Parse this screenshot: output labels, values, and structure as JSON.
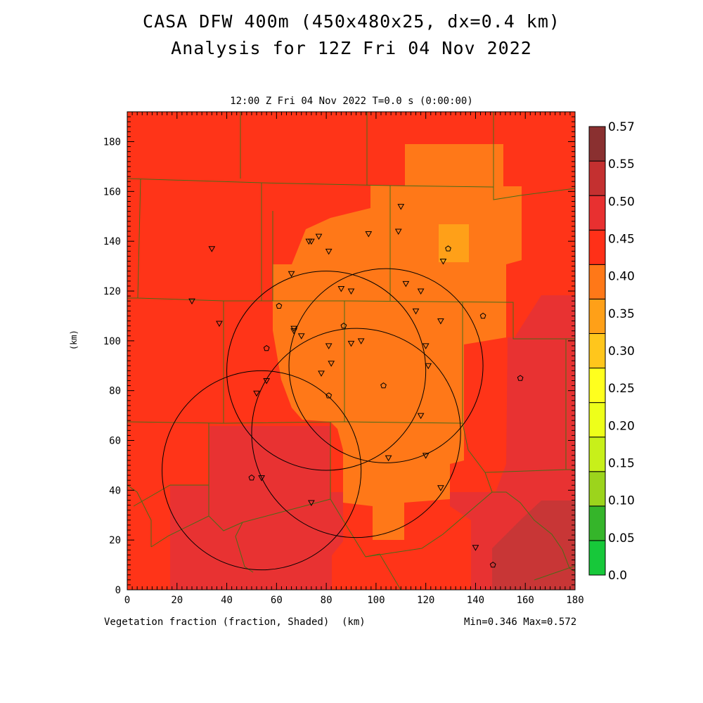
{
  "title": {
    "line1": "CASA DFW 400m (450x480x25, dx=0.4 km)",
    "line2": "Analysis for 12Z Fri 04 Nov 2022",
    "subtitle": "12:00 Z Fri 04 Nov 2022   T=0.0 s (0:00:00)"
  },
  "axes": {
    "ylabel": "(km)",
    "x_unit": "(km)",
    "field_label": "Vegetation fraction (fraction, Shaded)",
    "minmax": "Min=0.346 Max=0.572",
    "x_range": [
      0,
      180
    ],
    "y_range": [
      0,
      192
    ],
    "x_ticks": [
      "0",
      "20",
      "40",
      "60",
      "80",
      "100",
      "120",
      "140",
      "160",
      "180"
    ],
    "y_ticks": [
      "0",
      "20",
      "40",
      "60",
      "80",
      "100",
      "120",
      "140",
      "160",
      "180"
    ]
  },
  "colorbar": {
    "labels": [
      "0.0",
      "0.05",
      "0.10",
      "0.15",
      "0.20",
      "0.25",
      "0.30",
      "0.35",
      "0.40",
      "0.45",
      "0.50",
      "0.55",
      "0.57"
    ],
    "colors": [
      "#16e88a",
      "#17c83a",
      "#35b52a",
      "#9cd41c",
      "#c8f01a",
      "#eeff1a",
      "#ffff1e",
      "#ffc61c",
      "#ffa018",
      "#ff7818",
      "#ff3018",
      "#e83030",
      "#c43030",
      "#8a3030"
    ]
  },
  "radars": [
    {
      "name": "radar-1",
      "cx": 104,
      "cy": 90,
      "r": 39
    },
    {
      "name": "radar-2",
      "cx": 80,
      "cy": 88,
      "r": 40
    },
    {
      "name": "radar-3",
      "cx": 92,
      "cy": 63,
      "r": 42
    },
    {
      "name": "radar-4",
      "cx": 54,
      "cy": 48,
      "r": 40
    }
  ],
  "stations_triangle": [
    [
      110,
      154
    ],
    [
      109,
      144
    ],
    [
      97,
      143
    ],
    [
      77,
      142
    ],
    [
      74,
      140
    ],
    [
      73,
      140
    ],
    [
      81,
      136
    ],
    [
      34,
      137
    ],
    [
      127,
      132
    ],
    [
      66,
      127
    ],
    [
      112,
      123
    ],
    [
      86,
      121
    ],
    [
      90,
      120
    ],
    [
      118,
      120
    ],
    [
      26,
      116
    ],
    [
      116,
      112
    ],
    [
      126,
      108
    ],
    [
      37,
      107
    ],
    [
      67,
      105
    ],
    [
      67,
      104
    ],
    [
      70,
      102
    ],
    [
      90,
      99
    ],
    [
      94,
      100
    ],
    [
      81,
      98
    ],
    [
      120,
      98
    ],
    [
      82,
      91
    ],
    [
      121,
      90
    ],
    [
      78,
      87
    ],
    [
      56,
      84
    ],
    [
      52,
      79
    ],
    [
      118,
      70
    ],
    [
      120,
      54
    ],
    [
      105,
      53
    ],
    [
      54,
      45
    ],
    [
      126,
      41
    ],
    [
      74,
      35
    ],
    [
      140,
      17
    ]
  ],
  "stations_pentagon": [
    [
      129,
      137
    ],
    [
      61,
      114
    ],
    [
      143,
      110
    ],
    [
      87,
      106
    ],
    [
      56,
      97
    ],
    [
      103,
      82
    ],
    [
      81,
      78
    ],
    [
      158,
      85
    ],
    [
      50,
      45
    ],
    [
      147,
      10
    ]
  ]
}
